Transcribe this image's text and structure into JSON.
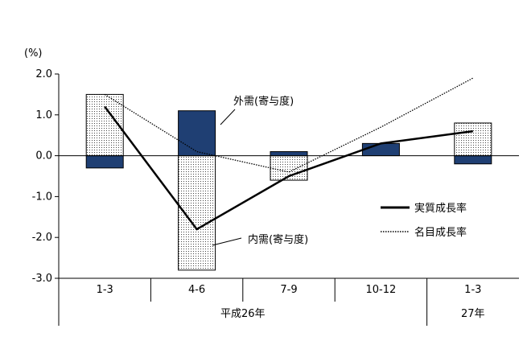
{
  "chart_data": {
    "type": "bar",
    "categories": [
      "1-3",
      "4-6",
      "7-9",
      "10-12",
      "1-3"
    ],
    "year_groups": [
      {
        "label": "平成26年",
        "span": 4
      },
      {
        "label": "27年",
        "span": 1
      }
    ],
    "unit_label": "(%)",
    "ylim": [
      -3.0,
      2.0
    ],
    "yticks": [
      "2.0",
      "1.0",
      "0.0",
      "-1.0",
      "-2.0",
      "-3.0"
    ],
    "ytick_values": [
      2.0,
      1.0,
      0.0,
      -1.0,
      -2.0,
      -3.0
    ],
    "series": [
      {
        "name": "外需(寄与度)",
        "kind": "bar",
        "color": "#1f3f73",
        "values": [
          -0.3,
          1.1,
          0.1,
          0.3,
          -0.2
        ]
      },
      {
        "name": "内需(寄与度)",
        "kind": "bar",
        "pattern": "dotted",
        "values": [
          1.5,
          -2.8,
          -0.6,
          0.0,
          0.8
        ]
      },
      {
        "name": "実質成長率",
        "kind": "line",
        "style": "solid",
        "values": [
          1.2,
          -1.8,
          -0.5,
          0.3,
          0.6
        ]
      },
      {
        "name": "名目成長率",
        "kind": "line",
        "style": "dotted",
        "values": [
          1.5,
          0.1,
          -0.4,
          0.7,
          1.9
        ]
      }
    ],
    "legend_position": "right-center",
    "grid": false
  }
}
